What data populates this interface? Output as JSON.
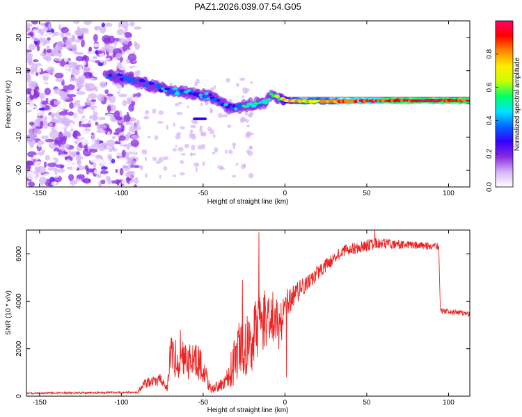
{
  "chart_data": [
    {
      "type": "heatmap",
      "title": "PAZ1.2026.039.07.54.G05",
      "xlabel": "Height of straight line (km)",
      "ylabel": "Frequency (Hz)",
      "xlim": [
        -158,
        113
      ],
      "ylim": [
        -25,
        25
      ],
      "x_ticks": [
        -150,
        -100,
        -50,
        0,
        50,
        100
      ],
      "y_ticks": [
        -20,
        -10,
        0,
        10,
        20
      ],
      "colorbar": {
        "label": "Normalized spectral amplitude",
        "range": [
          0,
          1
        ],
        "ticks": [
          0.0,
          0.2,
          0.4,
          0.6,
          0.8
        ],
        "tick_labels": [
          "0.0",
          "0.2",
          "0.4",
          "0.6",
          "0.8"
        ],
        "colors": [
          "#ffffff",
          "#d6b4f7",
          "#8a2be2",
          "#3300ff",
          "#0066ff",
          "#00e5ff",
          "#00ff66",
          "#c8ff00",
          "#ffee00",
          "#ff8800",
          "#ff0000",
          "#ff0066"
        ]
      },
      "ridge": [
        {
          "x": -108,
          "f": 8.5,
          "a": 0.25
        },
        {
          "x": -100,
          "f": 8.0,
          "a": 0.3
        },
        {
          "x": -92,
          "f": 7.0,
          "a": 0.3
        },
        {
          "x": -85,
          "f": 6.0,
          "a": 0.3
        },
        {
          "x": -78,
          "f": 5.0,
          "a": 0.3
        },
        {
          "x": -70,
          "f": 4.0,
          "a": 0.35
        },
        {
          "x": -62,
          "f": 3.5,
          "a": 0.35
        },
        {
          "x": -55,
          "f": 3.0,
          "a": 0.4
        },
        {
          "x": -48,
          "f": 2.5,
          "a": 0.35
        },
        {
          "x": -42,
          "f": 1.5,
          "a": 0.35
        },
        {
          "x": -35,
          "f": -1.0,
          "a": 0.3
        },
        {
          "x": -28,
          "f": -1.0,
          "a": 0.45
        },
        {
          "x": -20,
          "f": 0.0,
          "a": 0.5
        },
        {
          "x": -12,
          "f": 0.5,
          "a": 0.5
        },
        {
          "x": -8,
          "f": 2.5,
          "a": 0.45
        },
        {
          "x": 0,
          "f": 1.0,
          "a": 0.7
        },
        {
          "x": 20,
          "f": 0.8,
          "a": 0.75
        },
        {
          "x": 40,
          "f": 0.8,
          "a": 0.85
        },
        {
          "x": 60,
          "f": 1.0,
          "a": 0.9
        },
        {
          "x": 80,
          "f": 1.0,
          "a": 0.95
        },
        {
          "x": 100,
          "f": 1.0,
          "a": 0.95
        },
        {
          "x": 113,
          "f": 1.0,
          "a": 0.9
        }
      ]
    },
    {
      "type": "line",
      "xlabel": "Height of straight line (km)",
      "ylabel": "SNR (10 * v/v)",
      "xlim": [
        -158,
        113
      ],
      "ylim": [
        0,
        7000
      ],
      "x_ticks": [
        -150,
        -100,
        -50,
        0,
        50,
        100
      ],
      "y_ticks": [
        0,
        2000,
        4000,
        6000
      ],
      "series": [
        {
          "name": "SNR",
          "color": "#ee2222",
          "envelope": [
            {
              "x": -158,
              "y": 120,
              "n": 80
            },
            {
              "x": -90,
              "y": 150,
              "n": 80
            },
            {
              "x": -86,
              "y": 500,
              "n": 400
            },
            {
              "x": -76,
              "y": 700,
              "n": 500
            },
            {
              "x": -72,
              "y": 300,
              "n": 300
            },
            {
              "x": -70,
              "y": 1600,
              "n": 1800
            },
            {
              "x": -52,
              "y": 1300,
              "n": 1500
            },
            {
              "x": -45,
              "y": 250,
              "n": 300
            },
            {
              "x": -35,
              "y": 700,
              "n": 900
            },
            {
              "x": -30,
              "y": 1600,
              "n": 2500
            },
            {
              "x": -20,
              "y": 2300,
              "n": 2700
            },
            {
              "x": -15,
              "y": 3000,
              "n": 2600
            },
            {
              "x": -8,
              "y": 3300,
              "n": 2200
            },
            {
              "x": -3,
              "y": 2800,
              "n": 2000
            },
            {
              "x": 0,
              "y": 3800,
              "n": 1200
            },
            {
              "x": 10,
              "y": 4500,
              "n": 800
            },
            {
              "x": 25,
              "y": 5500,
              "n": 600
            },
            {
              "x": 35,
              "y": 6100,
              "n": 500
            },
            {
              "x": 55,
              "y": 6400,
              "n": 500
            },
            {
              "x": 75,
              "y": 6350,
              "n": 350
            },
            {
              "x": 94,
              "y": 6300,
              "n": 300
            },
            {
              "x": 95,
              "y": 3600,
              "n": 250
            },
            {
              "x": 113,
              "y": 3450,
              "n": 200
            }
          ],
          "spikes": [
            {
              "x": -16,
              "y": 6900
            },
            {
              "x": -26,
              "y": 4900
            },
            {
              "x": 1,
              "y": 800
            },
            {
              "x": 55,
              "y": 7000
            },
            {
              "x": -64,
              "y": 2800
            }
          ]
        }
      ]
    }
  ]
}
